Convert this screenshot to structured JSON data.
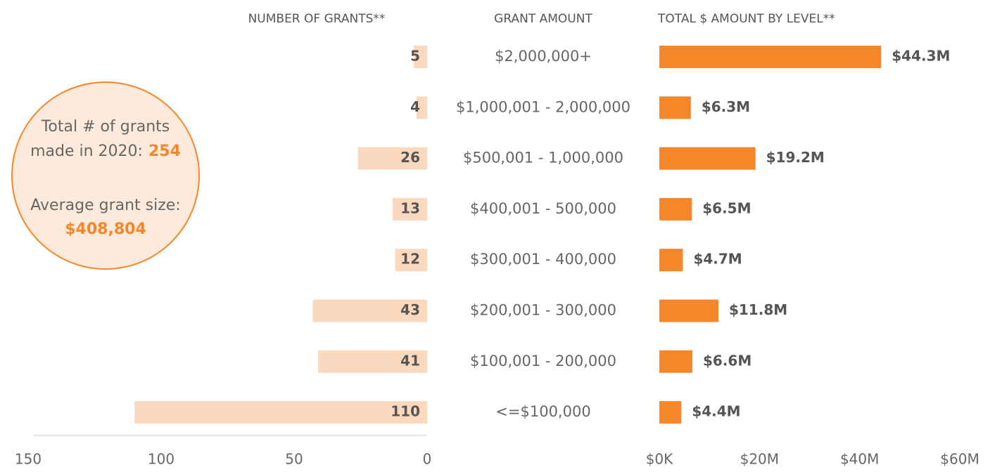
{
  "chart_data": [
    {
      "type": "bar",
      "orientation": "horizontal",
      "title": "NUMBER OF GRANTS**",
      "category_title": "GRANT AMOUNT",
      "categories": [
        "$2,000,000+",
        "$1,000,001 - 2,000,000",
        "$500,001 - 1,000,000",
        "$400,001 - 500,000",
        "$300,001 - 400,000",
        "$200,001 - 300,000",
        "$100,001 - 200,000",
        "<=$100,000"
      ],
      "values": [
        5,
        4,
        26,
        13,
        12,
        43,
        41,
        110
      ],
      "color": "#fad9bf",
      "xlim": [
        150,
        0
      ],
      "xticks": [
        150,
        100,
        50,
        0
      ]
    },
    {
      "type": "bar",
      "orientation": "horizontal",
      "title": "TOTAL $ AMOUNT BY LEVEL**",
      "values": [
        44300000,
        6300000,
        19200000,
        6500000,
        4700000,
        11800000,
        6600000,
        4400000
      ],
      "value_labels": [
        "$44.3M",
        "$6.3M",
        "$19.2M",
        "$6.5M",
        "$4.7M",
        "$11.8M",
        "$6.6M",
        "$4.4M"
      ],
      "color": "#f5862a",
      "xlim": [
        0,
        60000000
      ],
      "xticks": [
        {
          "value": 0,
          "label": "$0K"
        },
        {
          "value": 20000000,
          "label": "$20M"
        },
        {
          "value": 40000000,
          "label": "$40M"
        },
        {
          "value": 60000000,
          "label": "$60M"
        }
      ]
    }
  ],
  "callout": {
    "line1": "Total # of grants",
    "line2": "made in 2020:",
    "total": "254",
    "line3": "Average grant size:",
    "average": "$408,804"
  }
}
